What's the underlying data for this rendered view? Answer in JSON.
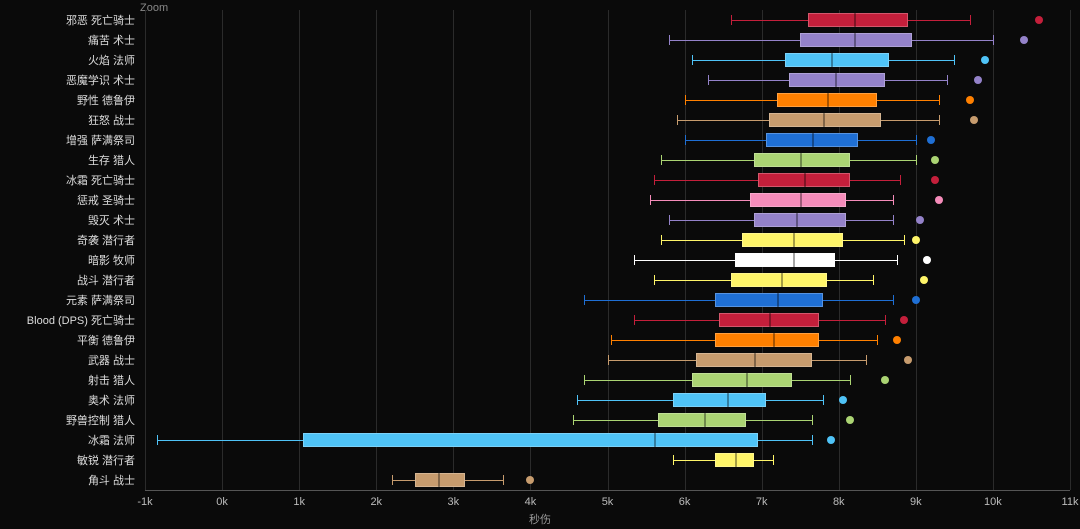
{
  "zoom_label": "Zoom",
  "x_axis_title": "秒伤",
  "chart_type": "boxplot",
  "background_color": "#0a0a0a",
  "grid_color": "#2b2b2b",
  "label_color": "#ddd",
  "tick_color": "#bbb",
  "label_fontsize": 11,
  "x_min": -1000,
  "x_max": 11000,
  "x_ticks": [
    -1000,
    0,
    1000,
    2000,
    3000,
    4000,
    5000,
    6000,
    7000,
    8000,
    9000,
    10000,
    11000
  ],
  "x_tick_labels": [
    "-1k",
    "0k",
    "1k",
    "2k",
    "3k",
    "4k",
    "5k",
    "6k",
    "7k",
    "8k",
    "9k",
    "10k",
    "11k"
  ],
  "series": [
    {
      "label": "邪恶 死亡骑士",
      "color": "#c41f3b",
      "whisker_low": 6600,
      "q1": 7600,
      "median": 8200,
      "q3": 8900,
      "whisker_high": 9700,
      "outliers": [
        10600
      ]
    },
    {
      "label": "痛苦 术士",
      "color": "#9482c9",
      "whisker_low": 5800,
      "q1": 7500,
      "median": 8200,
      "q3": 8950,
      "whisker_high": 10000,
      "outliers": [
        10400
      ]
    },
    {
      "label": "火焰 法师",
      "color": "#4fc3f7",
      "whisker_low": 6100,
      "q1": 7300,
      "median": 7900,
      "q3": 8650,
      "whisker_high": 9500,
      "outliers": [
        9900
      ]
    },
    {
      "label": "恶魔学识 术士",
      "color": "#9482c9",
      "whisker_low": 6300,
      "q1": 7350,
      "median": 7950,
      "q3": 8600,
      "whisker_high": 9400,
      "outliers": [
        9800
      ]
    },
    {
      "label": "野性 德鲁伊",
      "color": "#ff8000",
      "whisker_low": 6000,
      "q1": 7200,
      "median": 7850,
      "q3": 8500,
      "whisker_high": 9300,
      "outliers": [
        9700
      ]
    },
    {
      "label": "狂怒 战士",
      "color": "#c79c6e",
      "whisker_low": 5900,
      "q1": 7100,
      "median": 7800,
      "q3": 8550,
      "whisker_high": 9300,
      "outliers": [
        9750
      ]
    },
    {
      "label": "增强 萨满祭司",
      "color": "#1f6fd4",
      "whisker_low": 6000,
      "q1": 7050,
      "median": 7650,
      "q3": 8250,
      "whisker_high": 9000,
      "outliers": [
        9200
      ]
    },
    {
      "label": "生存 猎人",
      "color": "#abd473",
      "whisker_low": 5700,
      "q1": 6900,
      "median": 7500,
      "q3": 8150,
      "whisker_high": 9000,
      "outliers": [
        9250
      ]
    },
    {
      "label": "冰霜 死亡骑士",
      "color": "#c41f3b",
      "whisker_low": 5600,
      "q1": 6950,
      "median": 7550,
      "q3": 8150,
      "whisker_high": 8800,
      "outliers": [
        9250
      ]
    },
    {
      "label": "惩戒 圣骑士",
      "color": "#f58cba",
      "whisker_low": 5550,
      "q1": 6850,
      "median": 7500,
      "q3": 8100,
      "whisker_high": 8700,
      "outliers": [
        9300
      ]
    },
    {
      "label": "毁灭 术士",
      "color": "#9482c9",
      "whisker_low": 5800,
      "q1": 6900,
      "median": 7450,
      "q3": 8100,
      "whisker_high": 8700,
      "outliers": [
        9050
      ]
    },
    {
      "label": "奇袭 潜行者",
      "color": "#fff569",
      "whisker_low": 5700,
      "q1": 6750,
      "median": 7400,
      "q3": 8050,
      "whisker_high": 8850,
      "outliers": [
        9000
      ]
    },
    {
      "label": "暗影 牧师",
      "color": "#ffffff",
      "whisker_low": 5350,
      "q1": 6650,
      "median": 7400,
      "q3": 7950,
      "whisker_high": 8750,
      "outliers": [
        9150
      ]
    },
    {
      "label": "战斗 潜行者",
      "color": "#fff569",
      "whisker_low": 5600,
      "q1": 6600,
      "median": 7250,
      "q3": 7850,
      "whisker_high": 8450,
      "outliers": [
        9100
      ]
    },
    {
      "label": "元素 萨满祭司",
      "color": "#1f6fd4",
      "whisker_low": 4700,
      "q1": 6400,
      "median": 7200,
      "q3": 7800,
      "whisker_high": 8700,
      "outliers": [
        9000
      ]
    },
    {
      "label": "Blood (DPS) 死亡骑士",
      "color": "#c41f3b",
      "whisker_low": 5350,
      "q1": 6450,
      "median": 7100,
      "q3": 7750,
      "whisker_high": 8600,
      "outliers": [
        8850
      ]
    },
    {
      "label": "平衡 德鲁伊",
      "color": "#ff8000",
      "whisker_low": 5050,
      "q1": 6400,
      "median": 7150,
      "q3": 7750,
      "whisker_high": 8500,
      "outliers": [
        8750
      ]
    },
    {
      "label": "武器 战士",
      "color": "#c79c6e",
      "whisker_low": 5000,
      "q1": 6150,
      "median": 6900,
      "q3": 7650,
      "whisker_high": 8350,
      "outliers": [
        8900
      ]
    },
    {
      "label": "射击 猎人",
      "color": "#abd473",
      "whisker_low": 4700,
      "q1": 6100,
      "median": 6800,
      "q3": 7400,
      "whisker_high": 8150,
      "outliers": [
        8600
      ]
    },
    {
      "label": "奥术 法师",
      "color": "#4fc3f7",
      "whisker_low": 4600,
      "q1": 5850,
      "median": 6550,
      "q3": 7050,
      "whisker_high": 7800,
      "outliers": [
        8050
      ]
    },
    {
      "label": "野兽控制 猎人",
      "color": "#abd473",
      "whisker_low": 4550,
      "q1": 5650,
      "median": 6250,
      "q3": 6800,
      "whisker_high": 7650,
      "outliers": [
        8150
      ]
    },
    {
      "label": "冰霜 法师",
      "color": "#4fc3f7",
      "whisker_low": -850,
      "q1": 1050,
      "median": 5600,
      "q3": 6950,
      "whisker_high": 7650,
      "outliers": [
        7900
      ]
    },
    {
      "label": "敏锐 潜行者",
      "color": "#fff569",
      "whisker_low": 5850,
      "q1": 6400,
      "median": 6650,
      "q3": 6900,
      "whisker_high": 7150,
      "outliers": []
    },
    {
      "label": "角斗 战士",
      "color": "#c79c6e",
      "whisker_low": 2200,
      "q1": 2500,
      "median": 2800,
      "q3": 3150,
      "whisker_high": 3650,
      "outliers": [
        4000
      ]
    }
  ]
}
